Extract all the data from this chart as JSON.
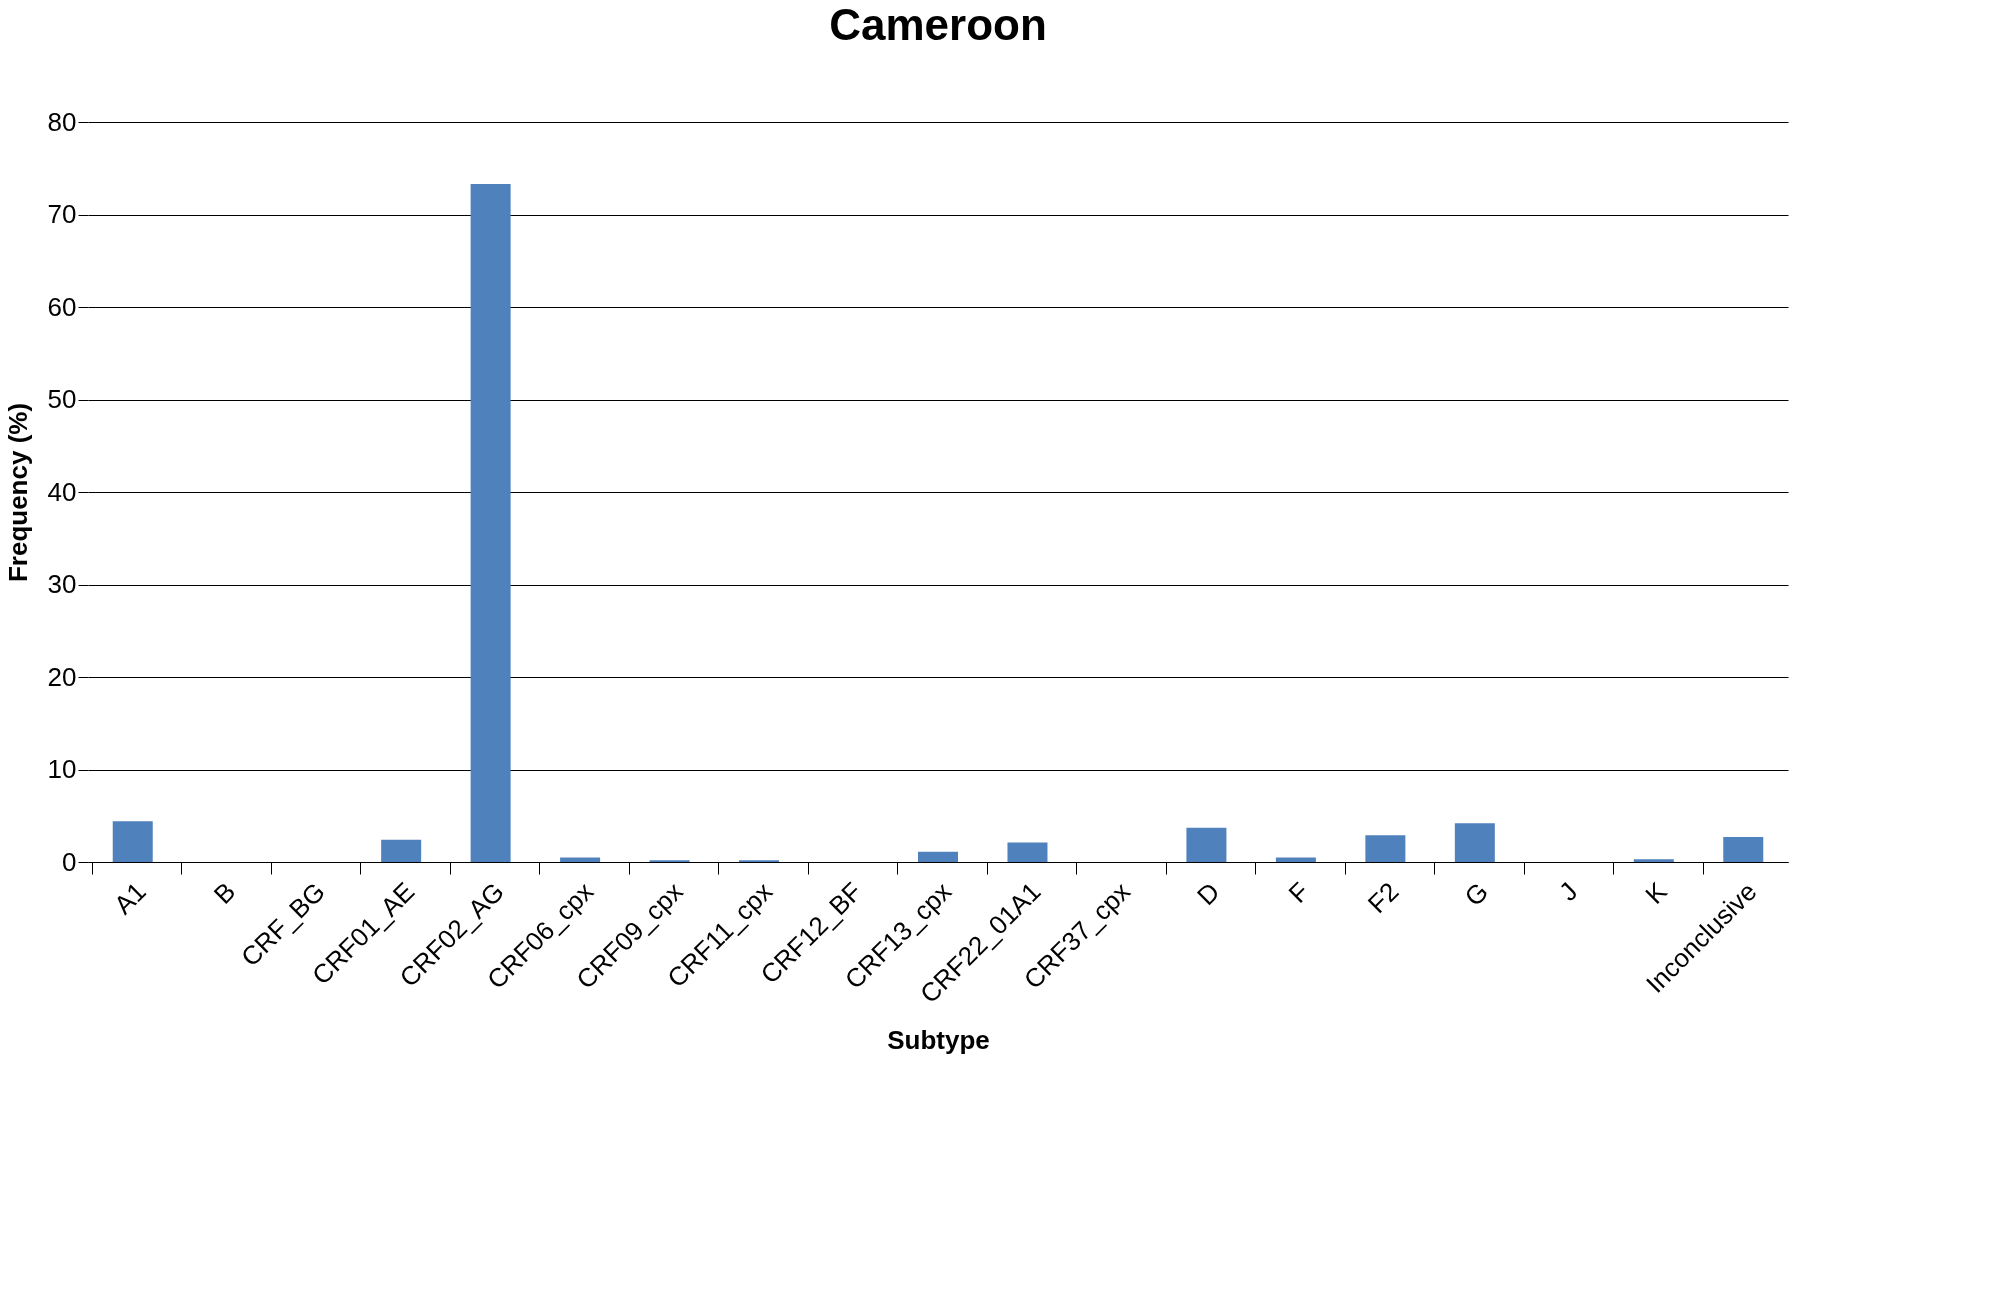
{
  "chart_data": {
    "type": "bar",
    "title": "Cameroon",
    "xlabel": "Subtype",
    "ylabel": "Frequency (%)",
    "categories": [
      "A1",
      "B",
      "CRF_BG",
      "CRF01_AE",
      "CRF02_AG",
      "CRF06_cpx",
      "CRF09_cpx",
      "CRF11_cpx",
      "CRF12_BF",
      "CRF13_cpx",
      "CRF22_01A1",
      "CRF37_cpx",
      "D",
      "F",
      "F2",
      "G",
      "J",
      "K",
      "Inconclusive"
    ],
    "values": [
      4.4,
      0,
      0,
      2.4,
      73.3,
      0.5,
      0.2,
      0.2,
      0,
      1.1,
      2.1,
      0,
      3.7,
      0.5,
      2.9,
      4.2,
      0,
      0.3,
      2.7
    ],
    "color": "#4f81bd",
    "ylim": [
      0,
      80
    ],
    "yticks": [
      0,
      10,
      20,
      30,
      40,
      50,
      60,
      70,
      80
    ],
    "grid": "y"
  }
}
